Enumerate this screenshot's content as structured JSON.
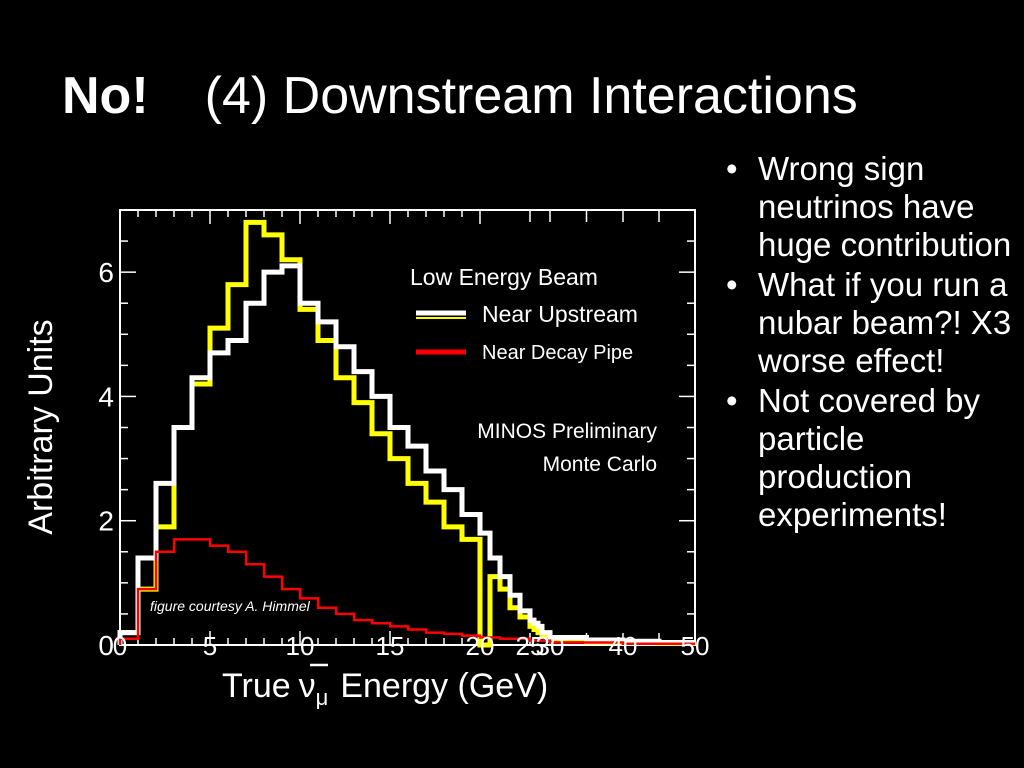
{
  "slide": {
    "title_bold": "No!",
    "title_rest": "(4) Downstream Interactions",
    "bullets": [
      "Wrong sign neutrinos have huge contribution",
      "What if you run a nubar beam?!  X3 worse effect!",
      "Not covered by particle production experiments!"
    ],
    "bullet_glyph": "•"
  },
  "chart_data": {
    "type": "line",
    "step": true,
    "xlabel_pre": "True",
    "xlabel_nu": "ν",
    "xlabel_sub": "μ",
    "xlabel_post": "Energy (GeV)",
    "ylabel": "Arbitrary Units",
    "xlim": [
      0,
      50
    ],
    "ylim": [
      0,
      7.0
    ],
    "x_scale": "piecewise: 0-20 linear, 20-50 compressed (ticks 25,30 between 20 and 40)",
    "x_ticks": [
      {
        "value": 0,
        "label": "0"
      },
      {
        "value": 5,
        "label": "5"
      },
      {
        "value": 10,
        "label": "10"
      },
      {
        "value": 15,
        "label": "15"
      },
      {
        "value": 20,
        "label": "20"
      },
      {
        "value": 25,
        "label": "25"
      },
      {
        "value": 30,
        "label": "30"
      },
      {
        "value": 40,
        "label": "40"
      },
      {
        "value": 50,
        "label": "50"
      }
    ],
    "y_ticks": [
      {
        "value": 0,
        "label": "0"
      },
      {
        "value": 2,
        "label": "2"
      },
      {
        "value": 4,
        "label": "4"
      },
      {
        "value": 6,
        "label": "6"
      }
    ],
    "legend": {
      "header": "Low Energy Beam",
      "entries": [
        {
          "label": "Near Upstream",
          "color": "#ffffff"
        },
        {
          "label": "Near Decay Pipe",
          "color": "#ff0000"
        }
      ],
      "notes": [
        "MINOS Preliminary",
        "Monte Carlo"
      ]
    },
    "annotation": "figure courtesy A. Himmel",
    "series": [
      {
        "color": "#ffff00",
        "edges": [
          0,
          1,
          2,
          3,
          4,
          5,
          6,
          7,
          8,
          9,
          10,
          11,
          12,
          13,
          14,
          15,
          16,
          17,
          18,
          19,
          20,
          21,
          22,
          23,
          24,
          25,
          26,
          27,
          28,
          30,
          35,
          40,
          45,
          50
        ],
        "values": [
          0.2,
          0.9,
          1.9,
          3.5,
          4.2,
          5.1,
          5.8,
          6.8,
          6.6,
          6.2,
          5.4,
          4.9,
          4.3,
          3.9,
          3.4,
          3.0,
          2.6,
          2.3,
          1.9,
          1.7,
          0,
          1.1,
          0.9,
          0.6,
          0.45,
          0.3,
          0.25,
          0.2,
          0.15,
          0.1,
          0.05,
          0.05,
          0.03
        ]
      },
      {
        "color": "#ffffff",
        "edges": [
          0,
          1,
          2,
          3,
          4,
          5,
          6,
          7,
          8,
          9,
          10,
          11,
          12,
          13,
          14,
          15,
          16,
          17,
          18,
          19,
          20,
          21,
          22,
          23,
          24,
          25,
          26,
          27,
          28,
          30,
          35,
          40,
          45,
          50
        ],
        "values": [
          0.2,
          1.4,
          2.6,
          3.5,
          4.3,
          4.7,
          4.9,
          5.5,
          6.0,
          6.1,
          5.5,
          5.2,
          4.8,
          4.4,
          4.0,
          3.5,
          3.2,
          2.8,
          2.5,
          2.1,
          1.8,
          1.4,
          1.1,
          0.8,
          0.55,
          0.4,
          0.35,
          0.3,
          0.2,
          0.12,
          0.08,
          0.06,
          0.04
        ]
      },
      {
        "color": "#ff0000",
        "edges": [
          0,
          1,
          2,
          3,
          4,
          5,
          6,
          7,
          8,
          9,
          10,
          11,
          12,
          13,
          14,
          15,
          16,
          17,
          18,
          19,
          20,
          22,
          25,
          30,
          40,
          50
        ],
        "values": [
          0.1,
          0.9,
          1.5,
          1.7,
          1.7,
          1.6,
          1.5,
          1.3,
          1.1,
          0.9,
          0.75,
          0.6,
          0.5,
          0.4,
          0.35,
          0.3,
          0.25,
          0.2,
          0.18,
          0.15,
          0.12,
          0.1,
          0.07,
          0.04,
          0.02
        ]
      }
    ]
  }
}
